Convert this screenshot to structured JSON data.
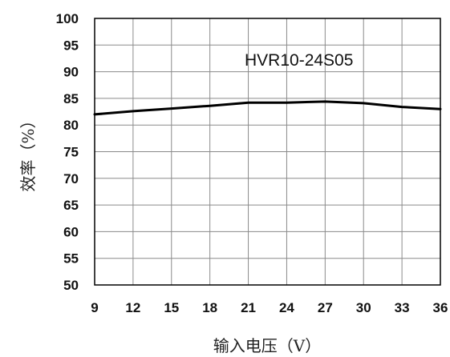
{
  "chart_data": {
    "type": "line",
    "xlabel": "输入电压（V）",
    "ylabel": "效率（%）",
    "annotation": "HVR10-24S05",
    "xlim": [
      9,
      36
    ],
    "ylim": [
      50,
      100
    ],
    "xticks": [
      "9",
      "12",
      "15",
      "18",
      "21",
      "24",
      "27",
      "30",
      "33",
      "36"
    ],
    "yticks": [
      "50",
      "55",
      "60",
      "65",
      "70",
      "75",
      "80",
      "85",
      "90",
      "95",
      "100"
    ],
    "grid": true,
    "series": [
      {
        "x": [
          9,
          12,
          15,
          18,
          21,
          24,
          27,
          30,
          33,
          36
        ],
        "y": [
          82,
          82.6,
          83.1,
          83.6,
          84.2,
          84.2,
          84.4,
          84.1,
          83.4,
          83
        ],
        "color": "#000000"
      }
    ]
  }
}
